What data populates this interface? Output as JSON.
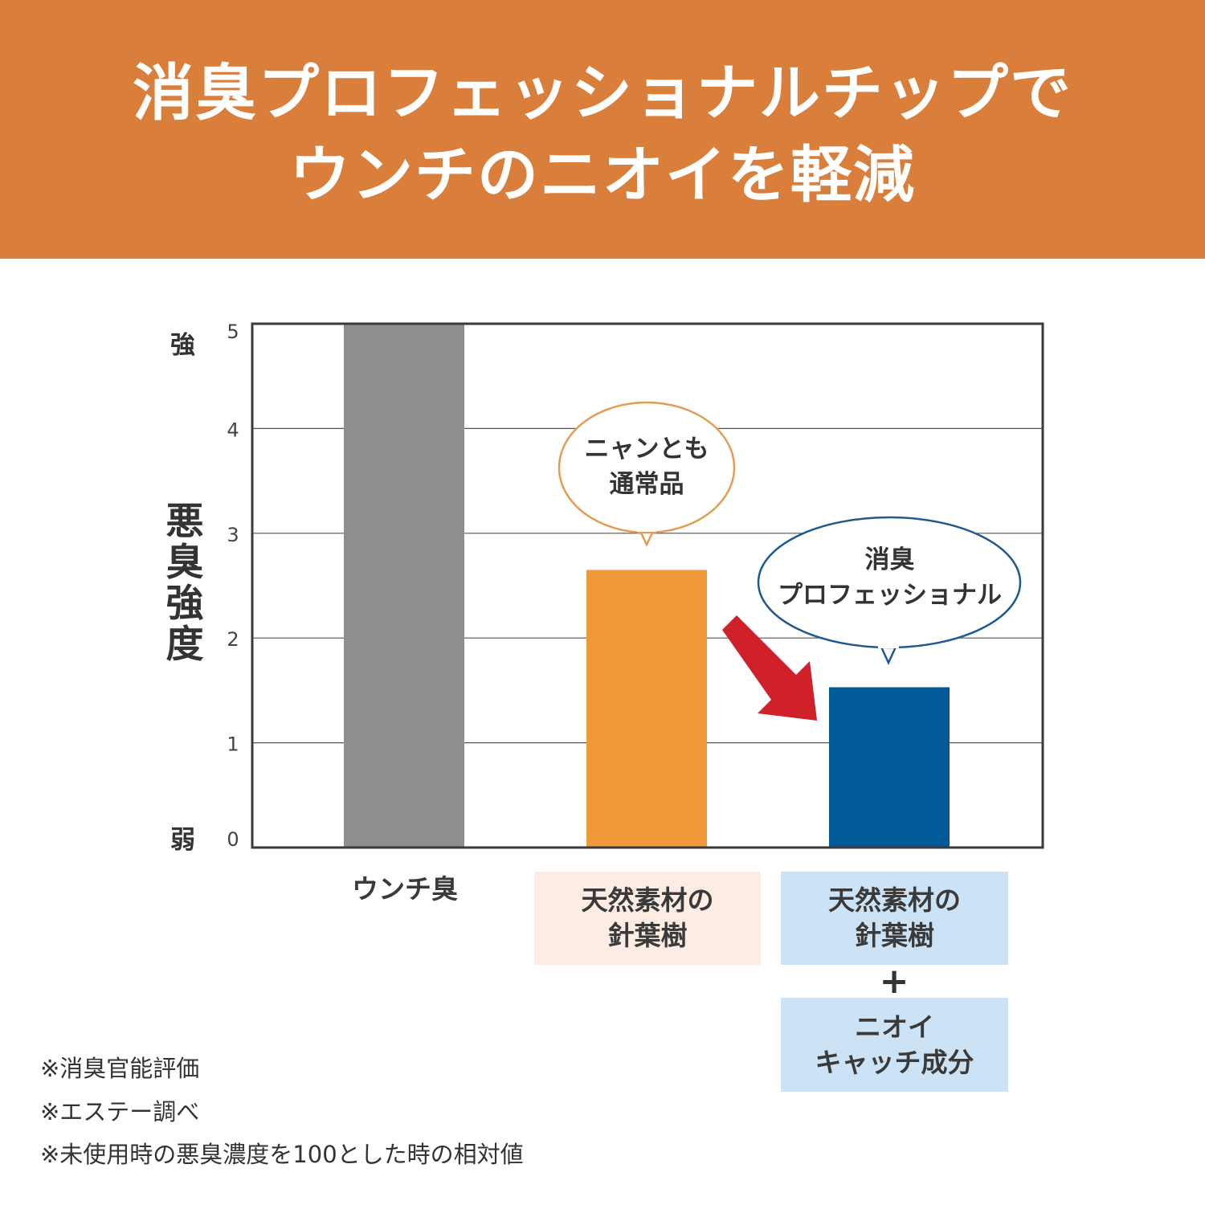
{
  "header": {
    "line1": "消臭プロフェッショナルチップで",
    "line2": "ウンチのニオイを軽減",
    "background": "#da7f3b"
  },
  "chart_data": {
    "type": "bar",
    "ylabel": "悪臭強度",
    "y_strong_label": "強",
    "y_weak_label": "弱",
    "ylim": [
      0,
      5
    ],
    "yticks": [
      0,
      1,
      2,
      3,
      4,
      5
    ],
    "grid": true,
    "categories": [
      {
        "label": "ウンチ臭",
        "value": 5.0,
        "color": "#8e8e90"
      },
      {
        "label_lines": [
          "天然素材の",
          "針葉樹"
        ],
        "value": 2.65,
        "color": "#f0993a",
        "box_color": "#fdece3"
      },
      {
        "label_lines": [
          "天然素材の",
          "針葉樹"
        ],
        "extra_lines": [
          "ニオイ",
          "キャッチ成分"
        ],
        "plus": "+",
        "value": 1.53,
        "color": "#005a9a",
        "box_color": "#cce3f5"
      }
    ],
    "annotations": [
      {
        "lines": [
          "ニャンとも",
          "通常品"
        ],
        "border_color": "#e49b54"
      },
      {
        "lines": [
          "消臭",
          "プロフェッショナル"
        ],
        "border_color": "#1f5a8e"
      }
    ],
    "arrow_color": "#d0202a"
  },
  "notes": [
    "※消臭官能評価",
    "※エステー調べ",
    "※未使用時の悪臭濃度を100とした時の相対値"
  ]
}
